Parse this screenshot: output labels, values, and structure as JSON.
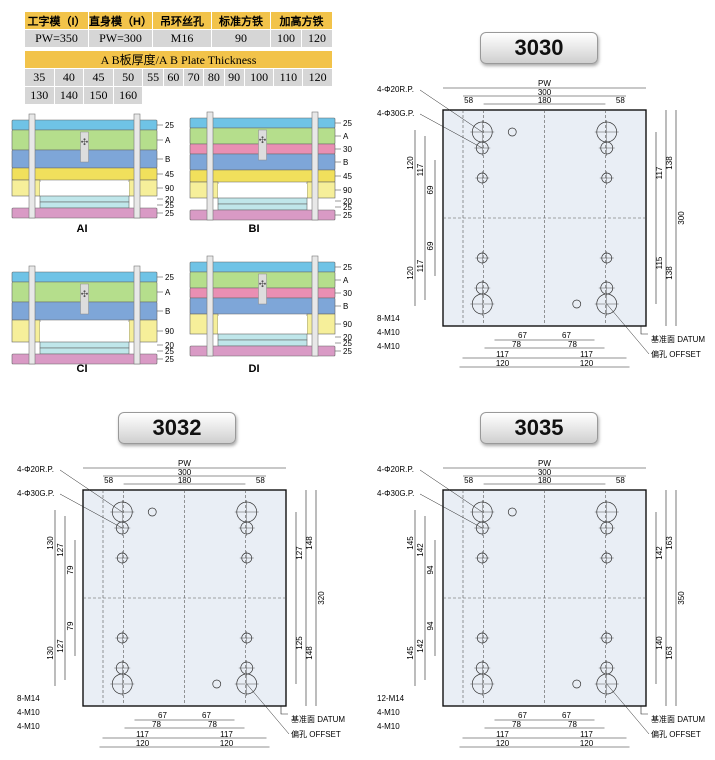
{
  "spec": {
    "headers": [
      "工字模（I）",
      "直身模（H）",
      "吊环丝孔",
      "标准方铁",
      "加高方铁"
    ],
    "values": [
      "PW=350",
      "PW=300",
      "M16",
      "90",
      "100",
      "120"
    ],
    "thickness_title": "A B板厚度/A B Plate Thickness",
    "thickness_row1": [
      "35",
      "40",
      "45",
      "50",
      "55",
      "60",
      "70",
      "80",
      "90",
      "100",
      "110",
      "120"
    ],
    "thickness_row2": [
      "130",
      "140",
      "150",
      "160"
    ]
  },
  "schematics": [
    {
      "label": "AI",
      "dims": [
        "25",
        "A",
        "B",
        "45",
        "90",
        "20",
        "25",
        "25"
      ]
    },
    {
      "label": "BI",
      "dims": [
        "25",
        "A",
        "30",
        "B",
        "45",
        "90",
        "20",
        "25",
        "25"
      ]
    },
    {
      "label": "CI",
      "dims": [
        "25",
        "A",
        "B",
        "90",
        "20",
        "25",
        "25"
      ]
    },
    {
      "label": "DI",
      "dims": [
        "25",
        "A",
        "30",
        "B",
        "90",
        "20",
        "25",
        "25"
      ]
    }
  ],
  "common": {
    "pw": "PW",
    "rp": "4-Φ20R.P.",
    "gp": "4-Φ30G.P.",
    "m10a": "4-M10",
    "m10b": "4-M10",
    "datum": "基准面 DATUM",
    "offset": "偏孔 OFFSET",
    "w300": "300",
    "w180": "180",
    "w58a": "58",
    "w58b": "58",
    "b67a": "67",
    "b67b": "67",
    "b78a": "78",
    "b78b": "78",
    "b117a": "117",
    "b117b": "117",
    "b120a": "120",
    "b120b": "120"
  },
  "plates": [
    {
      "title": "3030",
      "m14": "8-M14",
      "left": [
        "120",
        "117",
        "69",
        "69",
        "117",
        "120"
      ],
      "right": [
        "117",
        "138",
        "115",
        "138"
      ],
      "height": "300"
    },
    {
      "title": "3032",
      "m14": "8-M14",
      "left": [
        "130",
        "127",
        "79",
        "79",
        "127",
        "130"
      ],
      "right": [
        "127",
        "148",
        "125",
        "148"
      ],
      "height": "320"
    },
    {
      "title": "3035",
      "m14": "12-M14",
      "left": [
        "145",
        "142",
        "94",
        "94",
        "142",
        "145"
      ],
      "right": [
        "142",
        "163",
        "140",
        "163"
      ],
      "height": "350"
    }
  ]
}
